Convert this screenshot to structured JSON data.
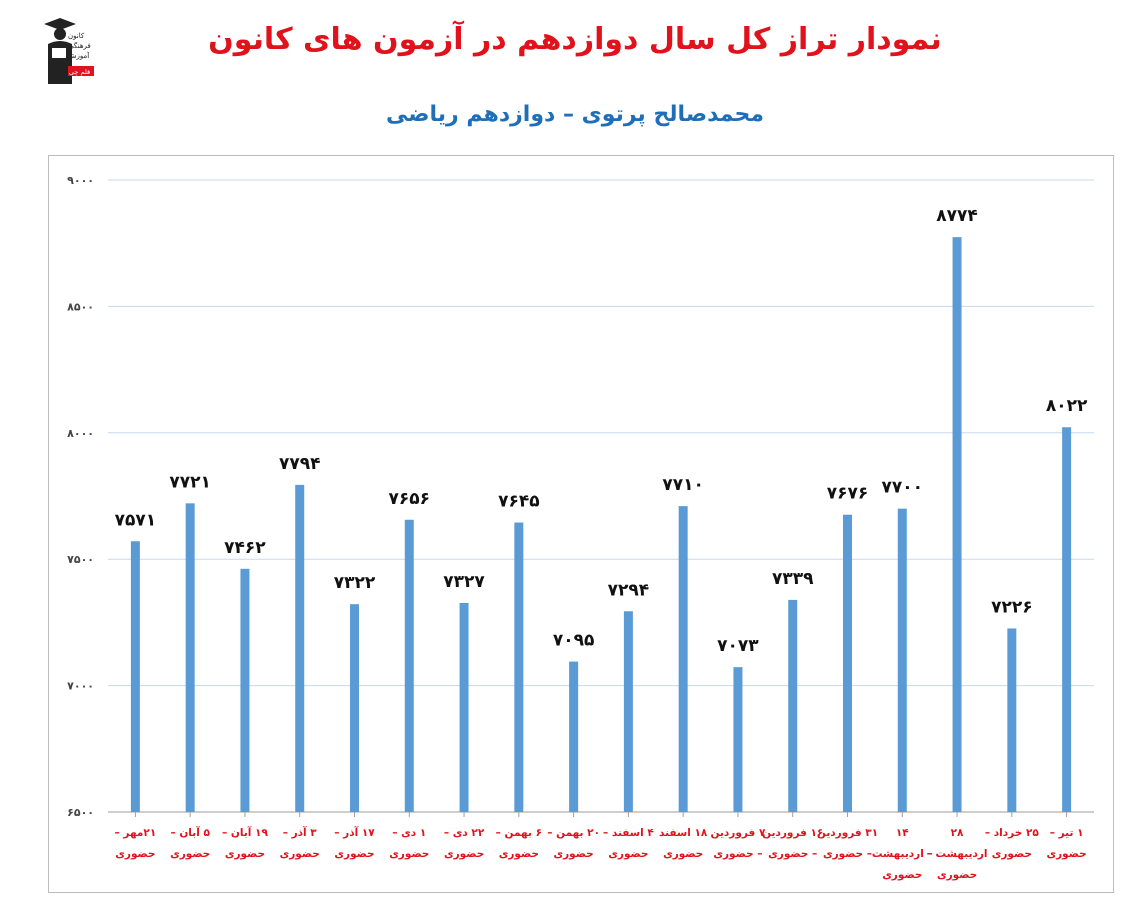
{
  "header": {
    "title": "نمودار تراز کل سال دوازدهم در آزمون های کانون",
    "subtitle": "محمدصالح پرتوی – دوازدهم ریاضی",
    "logo_text": [
      "کانون",
      "فرهنگی",
      "آموزش",
      "قلم چی"
    ]
  },
  "colors": {
    "bar": "#5b9bd5",
    "title": "#e0121b",
    "subtitle": "#1f6fb8",
    "xlabel": "#e0121b",
    "grid": "#c6d9ee"
  },
  "chart_data": {
    "type": "bar",
    "title": "",
    "xlabel": "",
    "ylabel": "",
    "ylim": [
      6500,
      9000
    ],
    "yticks": [
      6500,
      7000,
      7500,
      8000,
      8500,
      9000
    ],
    "ytick_labels": [
      "۶۵۰۰",
      "۷۰۰۰",
      "۷۵۰۰",
      "۸۰۰۰",
      "۸۵۰۰",
      "۹۰۰۰"
    ],
    "grid": true,
    "categories": [
      [
        "۲۱مهر –",
        "حضوری"
      ],
      [
        "۵ آبان –",
        "حضوری"
      ],
      [
        "۱۹ آبان –",
        "حضوری"
      ],
      [
        "۳ آذر –",
        "حضوری"
      ],
      [
        "۱۷ آذر –",
        "حضوری"
      ],
      [
        "۱ دی –",
        "حضوری"
      ],
      [
        "۲۲ دی –",
        "حضوری"
      ],
      [
        "۶ بهمن –",
        "حضوری"
      ],
      [
        "۲۰ بهمن –",
        "حضوری"
      ],
      [
        "۴ اسفند –",
        "حضوری"
      ],
      [
        "۱۸ اسفند",
        "حضوری"
      ],
      [
        "۷ فروردین",
        "– حضوری"
      ],
      [
        "۱۶ فروردین",
        "– حضوری"
      ],
      [
        "۳۱ فروردین",
        "– حضوری"
      ],
      [
        "۱۴",
        "– اردیبهشت",
        "حضوری"
      ],
      [
        "۲۸",
        "اردیبهشت –",
        "حضوری"
      ],
      [
        "۲۵ خرداد –",
        "حضوری"
      ],
      [
        "۱ تیر –",
        "حضوری"
      ]
    ],
    "values": [
      7571,
      7721,
      7462,
      7794,
      7322,
      7656,
      7327,
      7645,
      7095,
      7294,
      7710,
      7073,
      7339,
      7676,
      7700,
      8774,
      7226,
      8022
    ],
    "value_labels": [
      "۷۵۷۱",
      "۷۷۲۱",
      "۷۴۶۲",
      "۷۷۹۴",
      "۷۳۲۲",
      "۷۶۵۶",
      "۷۳۲۷",
      "۷۶۴۵",
      "۷۰۹۵",
      "۷۲۹۴",
      "۷۷۱۰",
      "۷۰۷۳",
      "۷۳۳۹",
      "۷۶۷۶",
      "۷۷۰۰",
      "۸۷۷۴",
      "۷۲۲۶",
      "۸۰۲۲"
    ]
  }
}
